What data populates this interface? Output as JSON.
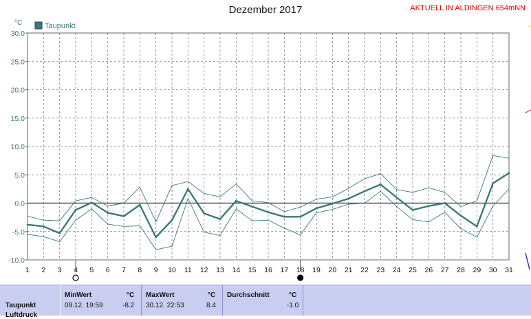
{
  "chart_data": {
    "type": "line",
    "title": "Dezember 2017",
    "ylabel": "°C",
    "ylim": [
      -10,
      30
    ],
    "yticks": [
      "30.0",
      "25.0",
      "20.0",
      "15.0",
      "10.0",
      "5.0",
      "0.0",
      "-5.0",
      "-10.0"
    ],
    "x": [
      1,
      2,
      3,
      4,
      5,
      6,
      7,
      8,
      9,
      10,
      11,
      12,
      13,
      14,
      15,
      16,
      17,
      18,
      19,
      20,
      21,
      22,
      23,
      24,
      25,
      26,
      27,
      28,
      29,
      30,
      31
    ],
    "grid": true,
    "legend_position": "top-left",
    "series": [
      {
        "name": "Taupunkt",
        "role": "mean",
        "color": "#3a7a78",
        "values": [
          -3.8,
          -4.1,
          -5.3,
          -1.2,
          0.1,
          -1.7,
          -2.3,
          -0.3,
          -6.0,
          -3.0,
          2.5,
          -1.8,
          -2.8,
          0.4,
          -0.6,
          -1.6,
          -2.4,
          -2.4,
          -0.9,
          -0.1,
          0.8,
          2.1,
          3.3,
          1.0,
          -1.2,
          -0.5,
          0.0,
          -2.2,
          -4.1,
          3.5,
          5.3
        ]
      },
      {
        "name": "",
        "role": "max",
        "color": "#3a7a78",
        "values": [
          -2.3,
          -3.0,
          -3.1,
          0.4,
          1.0,
          -0.5,
          0.0,
          2.8,
          -3.3,
          3.1,
          3.8,
          1.7,
          1.1,
          3.4,
          0.4,
          0.1,
          -1.5,
          -0.7,
          0.7,
          1.1,
          2.6,
          4.3,
          5.2,
          2.4,
          1.9,
          2.7,
          1.9,
          -0.6,
          0.4,
          8.4,
          7.9
        ]
      },
      {
        "name": "",
        "role": "min",
        "color": "#3a7a78",
        "values": [
          -5.5,
          -5.9,
          -6.8,
          -3.0,
          -1.0,
          -3.7,
          -4.1,
          -4.0,
          -8.2,
          -7.6,
          0.8,
          -5.1,
          -5.7,
          -1.0,
          -3.1,
          -3.0,
          -4.4,
          -5.6,
          -1.7,
          -1.1,
          -0.2,
          0.0,
          2.1,
          -0.6,
          -2.9,
          -3.3,
          -1.6,
          -4.5,
          -6.0,
          -0.5,
          2.5
        ]
      }
    ],
    "moon_markers": [
      {
        "day": 4,
        "phase": "full"
      },
      {
        "day": 18,
        "phase": "new"
      }
    ]
  },
  "header": {
    "status": "AKTUELL IN ALDINGEN 654mNN"
  },
  "legend": {
    "label": "Taupunkt",
    "color": "#3a7a78"
  },
  "stats": {
    "row_label": "Taupunkt",
    "row_label_cut": "Luftdruck",
    "min": {
      "header": "MinWert",
      "unit": "°C",
      "datetime": "09.12.  19:59",
      "value": "-8.2"
    },
    "max": {
      "header": "MaxWert",
      "unit": "°C",
      "datetime": "30.12.  22:53",
      "value": "8.4"
    },
    "avg": {
      "header": "Durchschnitt",
      "unit": "°C",
      "value": "-1.0"
    }
  }
}
